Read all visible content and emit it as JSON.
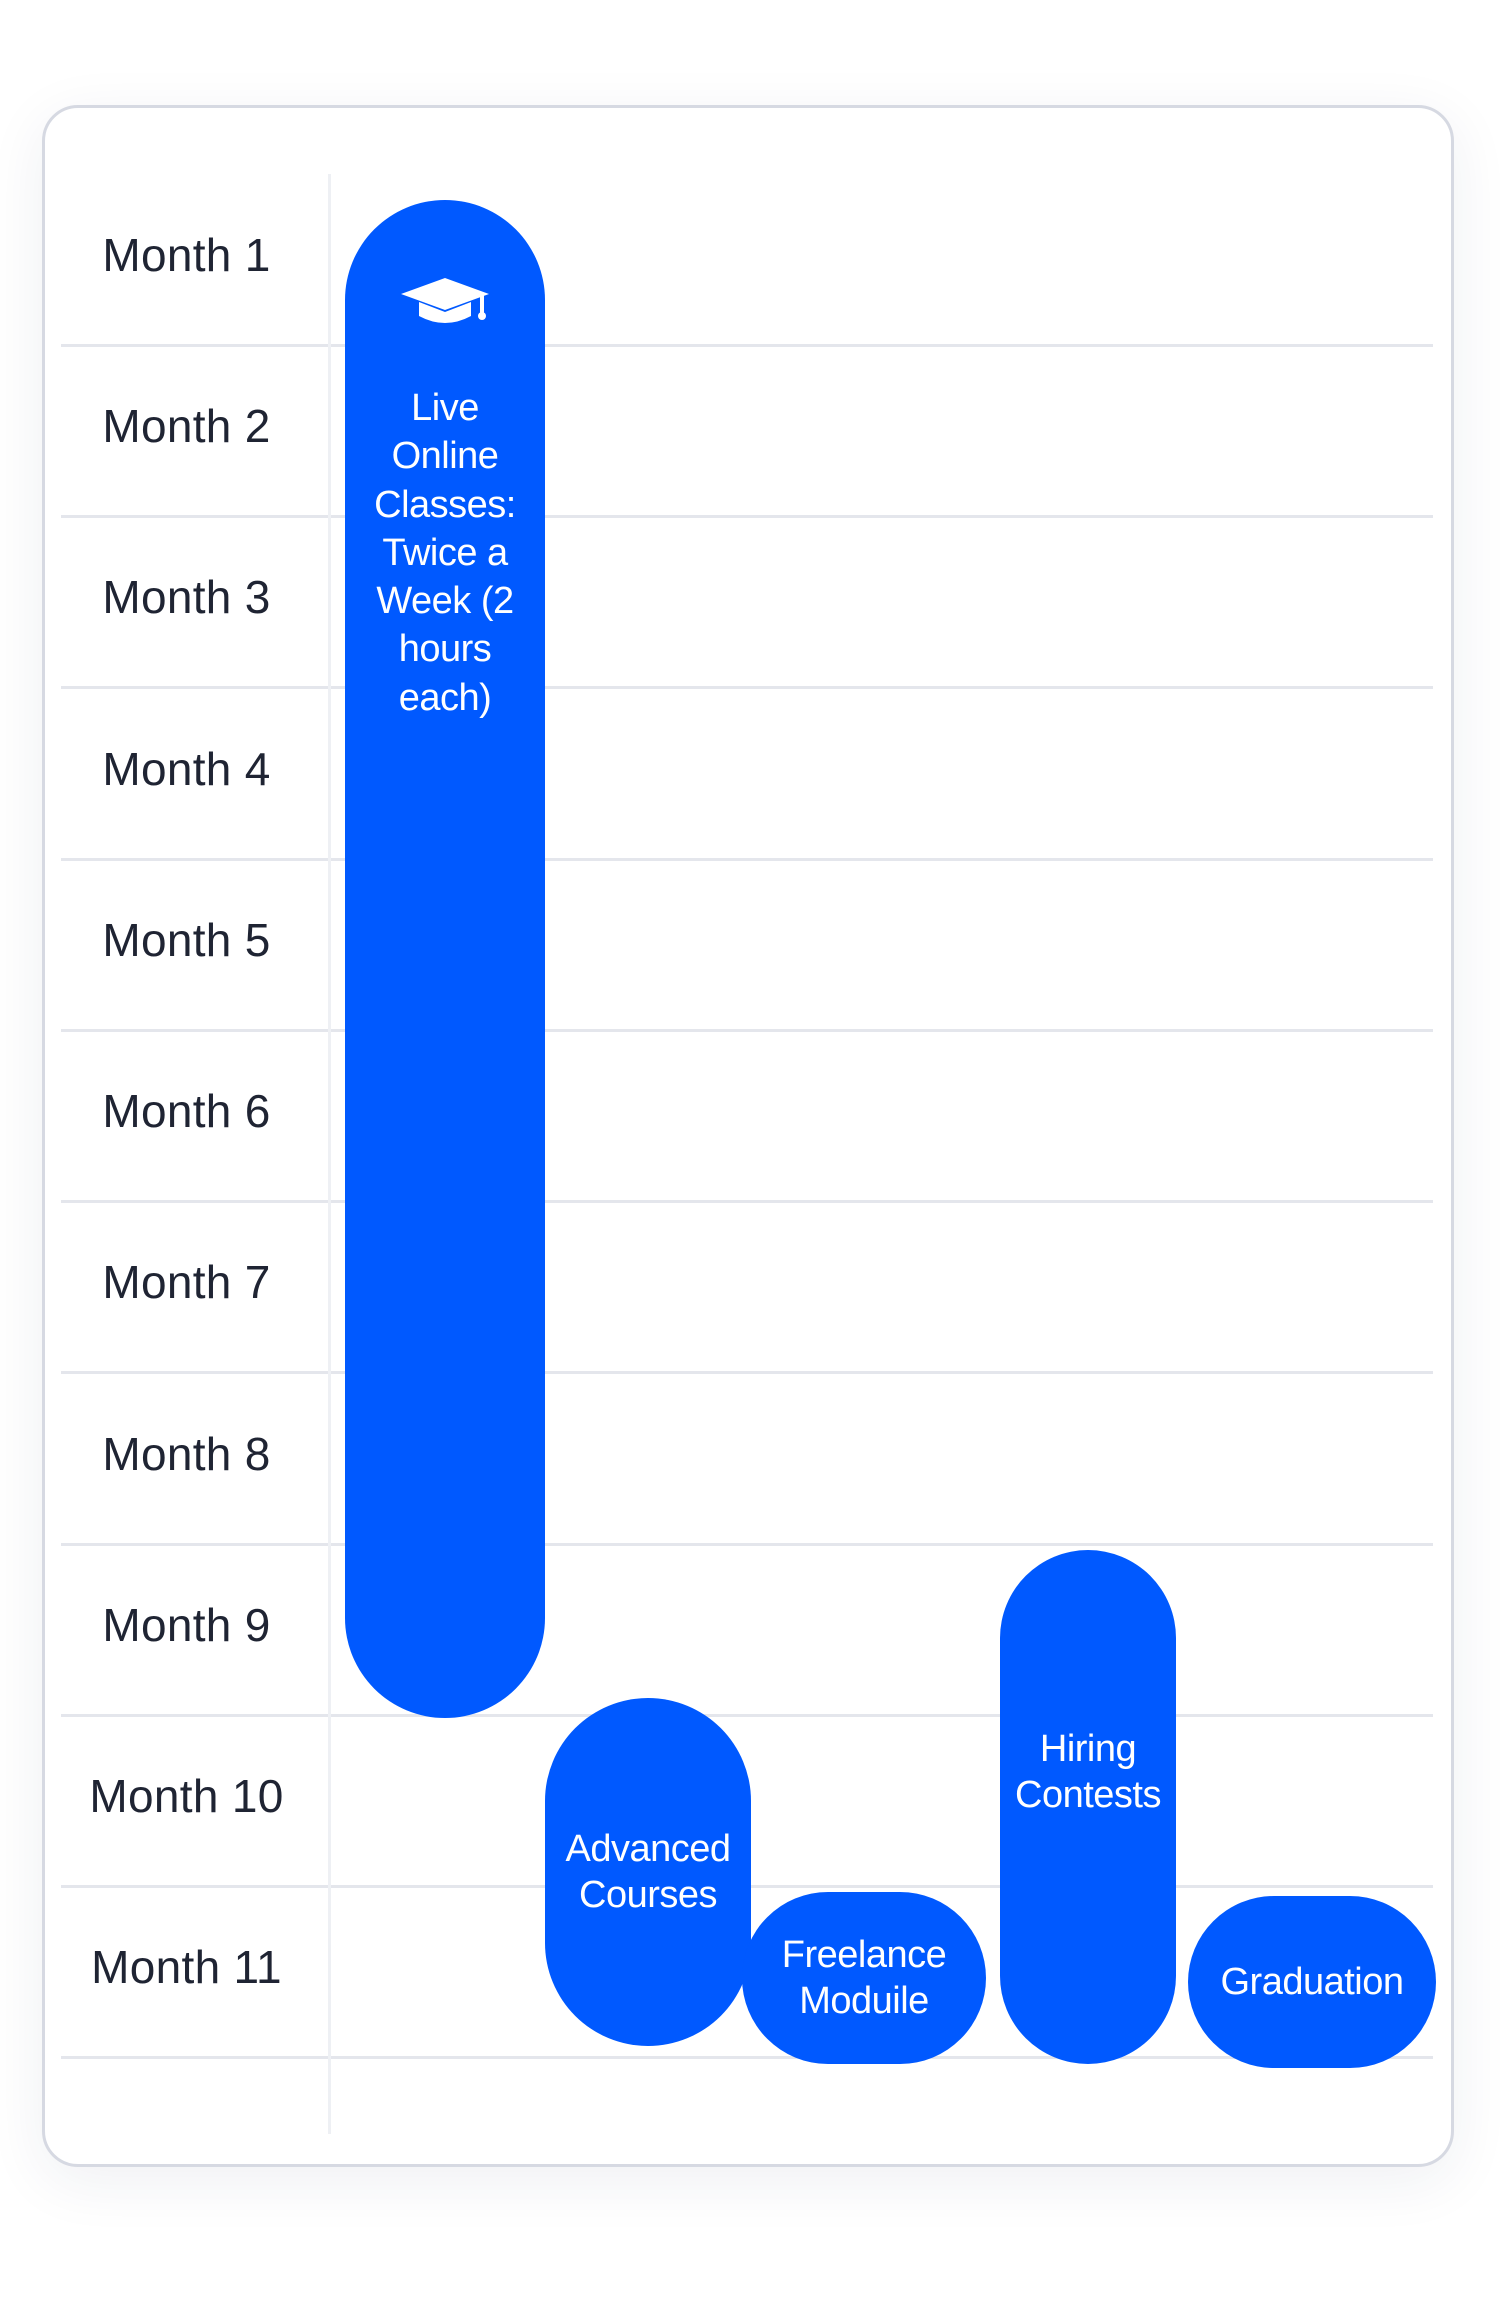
{
  "months": [
    "Month 1",
    "Month 2",
    "Month 3",
    "Month 4",
    "Month 5",
    "Month 6",
    "Month 7",
    "Month 8",
    "Month 9",
    "Month 10",
    "Month 11"
  ],
  "colors": {
    "accent": "#0059ff",
    "grid": "#e4e6ec",
    "text": "#1f2433",
    "card_border": "#d6d9e2"
  },
  "activities": {
    "live_classes": {
      "label": "Live Online Classes: Twice a Week (2 hours each)",
      "icon": "graduation-cap-icon",
      "start_month": 1,
      "end_month": 9
    },
    "advanced_courses": {
      "label": "Advanced Courses",
      "start_month": 10,
      "end_month": 11
    },
    "freelance_module": {
      "label": "Freelance Moduile",
      "start_month": 11,
      "end_month": 11
    },
    "hiring_contests": {
      "label": "Hiring Contests",
      "start_month": 9,
      "end_month": 11
    },
    "graduation": {
      "label": "Graduation",
      "start_month": 11,
      "end_month": 11
    }
  }
}
